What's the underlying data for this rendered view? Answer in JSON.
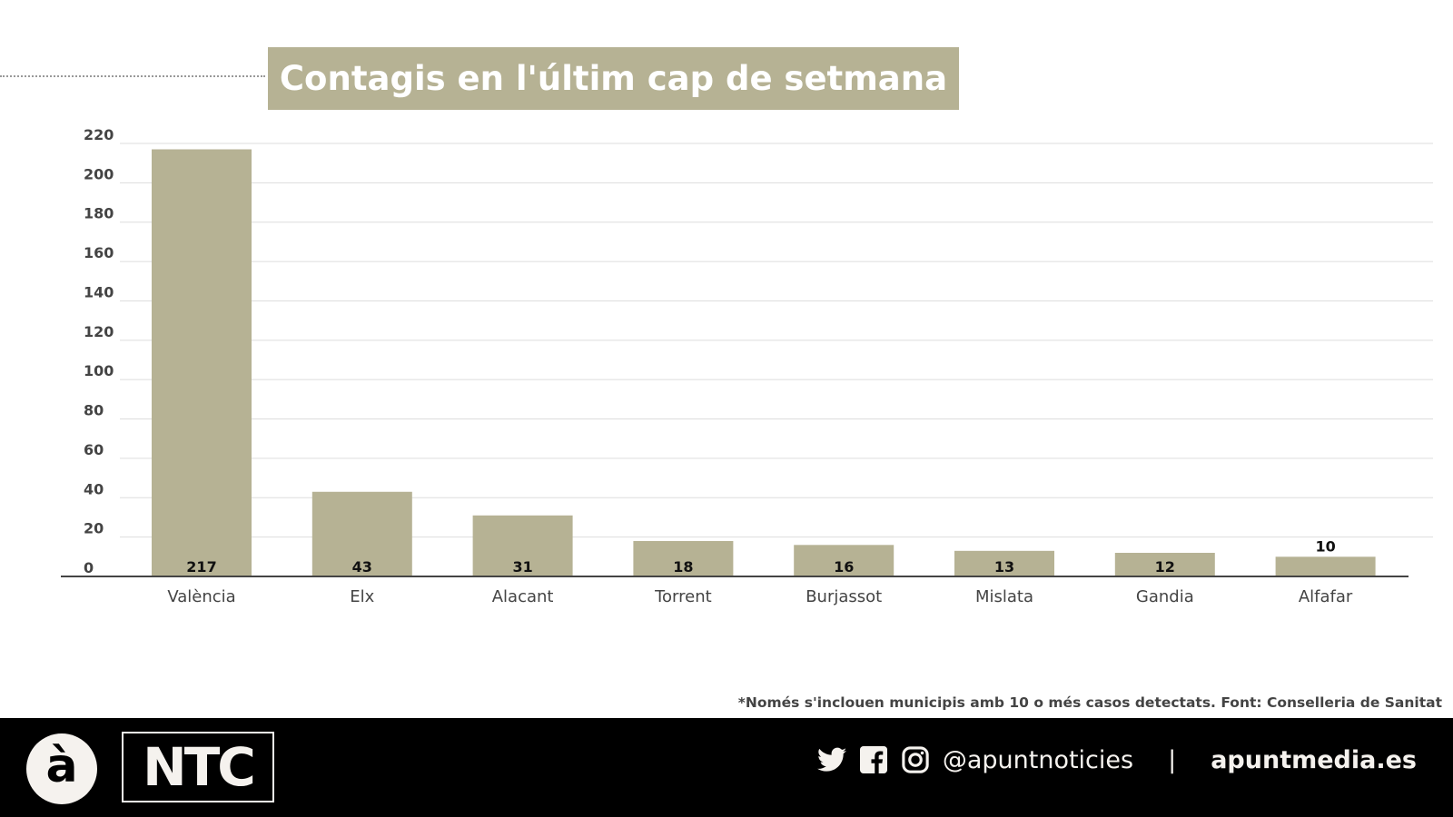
{
  "chart_data": {
    "type": "bar",
    "title": "Contagis en l'últim cap de setmana",
    "categories": [
      "València",
      "Elx",
      "Alacant",
      "Torrent",
      "Burjassot",
      "Mislata",
      "Gandia",
      "Alfafar"
    ],
    "values": [
      217,
      43,
      31,
      18,
      16,
      13,
      12,
      10
    ],
    "ylim": [
      0,
      220
    ],
    "yticks": [
      0,
      20,
      40,
      60,
      80,
      100,
      120,
      140,
      160,
      180,
      200,
      220
    ],
    "xlabel": "",
    "ylabel": "",
    "grid": true,
    "bar_color": "#b6b294"
  },
  "note": "*Només s'inclouen municipis amb 10 o més casos detectats. Font: Conselleria de Sanitat",
  "footer": {
    "logo_a": "à",
    "logo_ntc": "NTC",
    "handle": "@apuntnoticies",
    "separator": "|",
    "website": "apuntmedia.es",
    "icons": [
      "twitter-icon",
      "facebook-icon",
      "instagram-icon"
    ]
  }
}
